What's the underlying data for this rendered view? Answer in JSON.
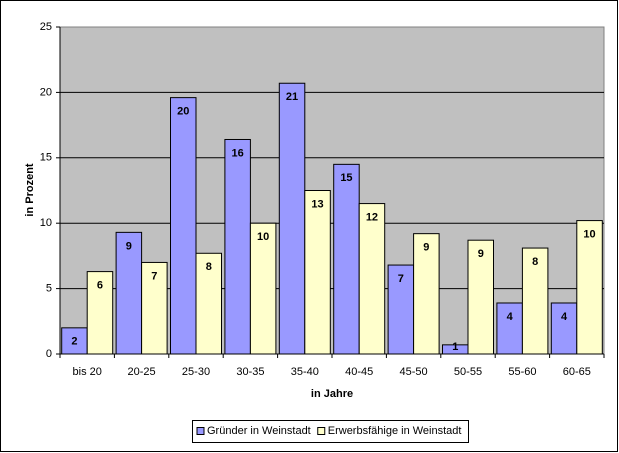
{
  "chart_data": {
    "type": "bar",
    "x_label": "in Jahre",
    "y_label": "in Prozent",
    "categories": [
      "bis 20",
      "20-25",
      "25-30",
      "30-35",
      "35-40",
      "40-45",
      "45-50",
      "50-55",
      "55-60",
      "60-65"
    ],
    "series": [
      {
        "name": "Gründer in Weinstadt",
        "color": "#9999ff",
        "values": [
          2,
          9.3,
          19.6,
          16.4,
          20.7,
          14.5,
          6.8,
          0.7,
          3.9,
          3.9
        ],
        "value_labels": [
          "2",
          "9",
          "20",
          "16",
          "21",
          "15",
          "7",
          "1",
          "4",
          "4"
        ]
      },
      {
        "name": "Erwerbsfähige in Weinstadt",
        "color": "#ffffcc",
        "values": [
          6.3,
          7.0,
          7.7,
          10.0,
          12.5,
          11.5,
          9.2,
          8.7,
          8.1,
          10.2
        ],
        "value_labels": [
          "6",
          "7",
          "8",
          "10",
          "13",
          "12",
          "9",
          "9",
          "8",
          "10"
        ]
      }
    ],
    "ylim": [
      0,
      25
    ],
    "yticks": [
      0,
      5,
      10,
      15,
      20,
      25
    ],
    "grid": true,
    "legend": "bottom"
  }
}
